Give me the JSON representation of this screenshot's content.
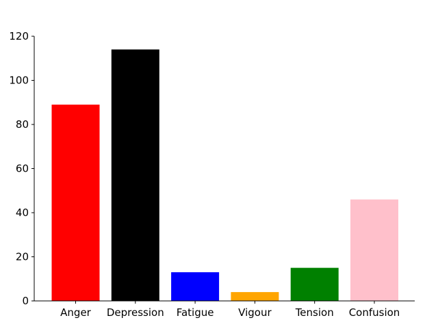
{
  "chart_data": {
    "type": "bar",
    "categories": [
      "Anger",
      "Depression",
      "Fatigue",
      "Vigour",
      "Tension",
      "Confusion"
    ],
    "values": [
      89,
      114,
      13,
      4,
      15,
      46
    ],
    "colors": [
      "#ff0000",
      "#000000",
      "#0000ff",
      "#ffa500",
      "#008000",
      "#ffc0cb"
    ],
    "ylim": [
      0,
      120
    ],
    "yticks": [
      0,
      20,
      40,
      60,
      80,
      100,
      120
    ],
    "xlabel": "",
    "ylabel": "",
    "title": "",
    "grid": false,
    "legend": "none"
  }
}
